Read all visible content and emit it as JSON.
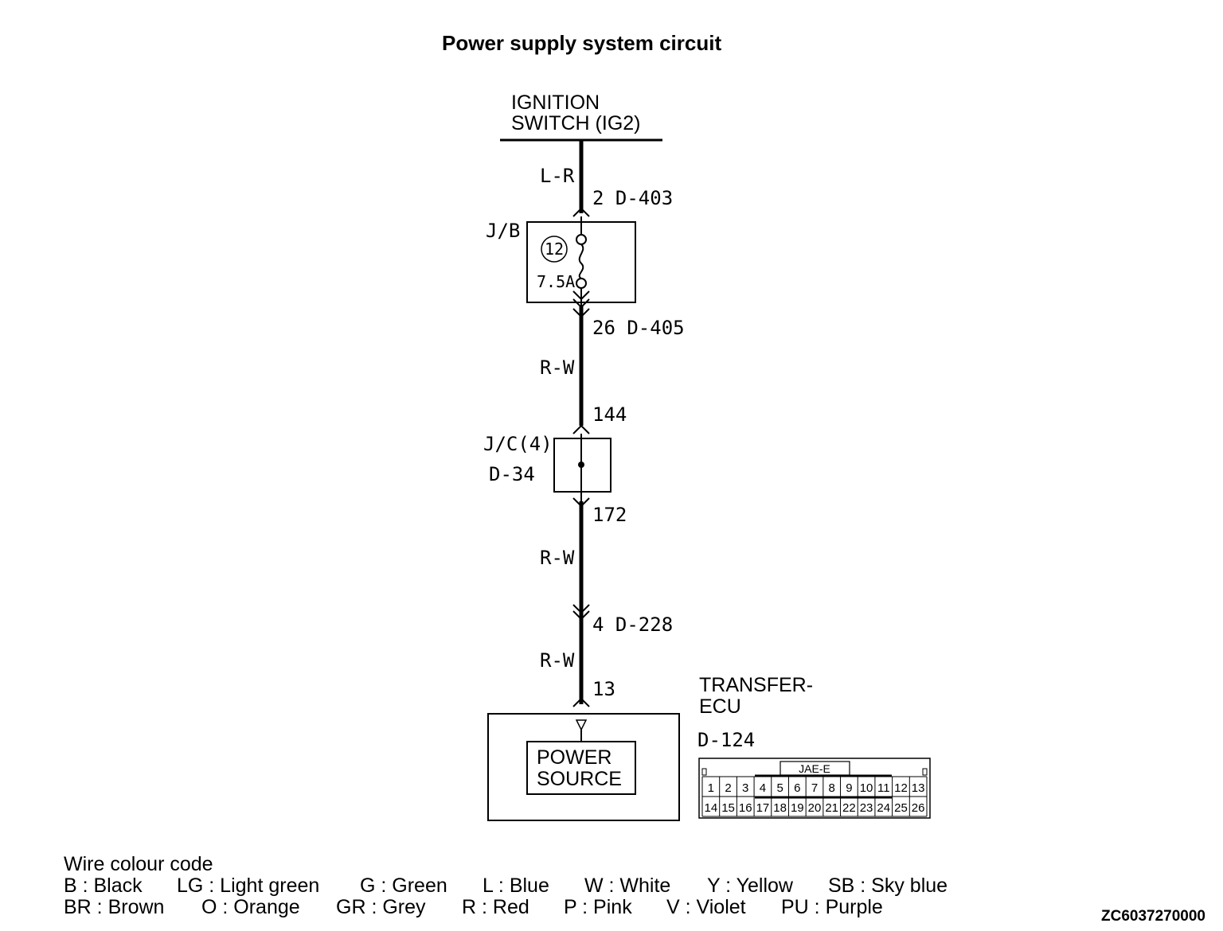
{
  "title": "Power supply system circuit",
  "ignition": {
    "line1": "IGNITION",
    "line2": "SWITCH (IG2)"
  },
  "wires": {
    "top_color": "L-R",
    "mid_color": "R-W",
    "lower_color": "R-W",
    "bottom_color": "R-W"
  },
  "connectors": {
    "jb_in": "2  D-403",
    "jb_out": "26  D-405",
    "jc_in": "144",
    "jc_out": "172",
    "d228": "4  D-228",
    "ecu_pin": "13"
  },
  "junction_block": {
    "label": "J/B",
    "fuse_number": "12",
    "fuse_rating": "7.5A"
  },
  "joint_connector": {
    "label": "J/C(4)",
    "code": "D-34"
  },
  "ecu": {
    "name_line1": "TRANSFER-",
    "name_line2": "ECU",
    "internal_line1": "POWER",
    "internal_line2": "SOURCE",
    "connector_code": "D-124",
    "connector_type": "JAE-E",
    "pins_row1": [
      "1",
      "2",
      "3",
      "4",
      "5",
      "6",
      "7",
      "8",
      "9",
      "10",
      "11",
      "12",
      "13"
    ],
    "pins_row2": [
      "14",
      "15",
      "16",
      "17",
      "18",
      "19",
      "20",
      "21",
      "22",
      "23",
      "24",
      "25",
      "26"
    ]
  },
  "legend": {
    "heading": "Wire colour code",
    "row1": [
      "B : Black",
      "LG : Light green",
      "G : Green",
      "L : Blue",
      "W : White",
      "Y : Yellow",
      "SB : Sky blue"
    ],
    "row2": [
      "BR : Brown",
      "O : Orange",
      "GR : Grey",
      "R : Red",
      "P : Pink",
      "V : Violet",
      "PU : Purple"
    ]
  },
  "doc_id": "ZC6037270000"
}
